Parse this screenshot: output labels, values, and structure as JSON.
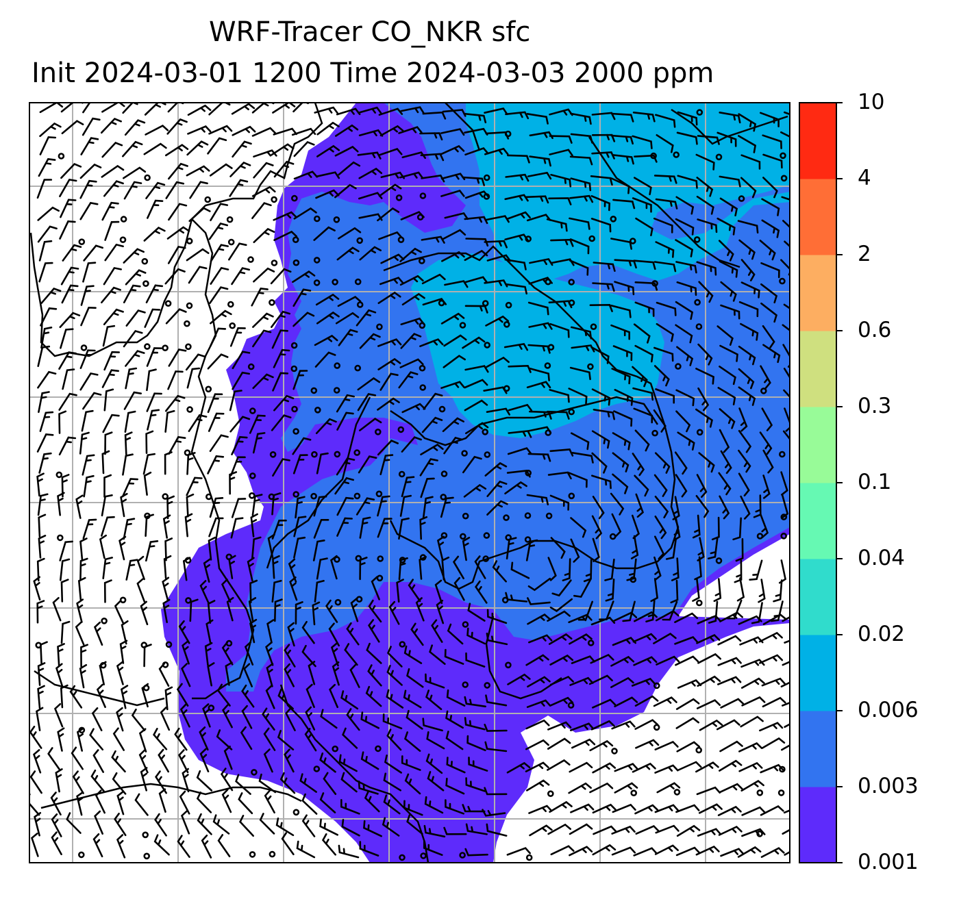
{
  "figure": {
    "title_line1": "WRF-Tracer CO_NKR sfc",
    "title_line2": "Init 2024-03-01 1200 Time 2024-03-03 2000 ppm"
  },
  "colorbar": {
    "levels": [
      "0.001",
      "0.003",
      "0.006",
      "0.02",
      "0.04",
      "0.1",
      "0.3",
      "0.6",
      "2",
      "4",
      "10"
    ],
    "colors": [
      "#5e2bfb",
      "#3274f0",
      "#00b1e6",
      "#30dccc",
      "#66f9b3",
      "#98fb98",
      "#cfe07f",
      "#fdae61",
      "#ff6e36",
      "#ff2a12"
    ]
  },
  "map": {
    "background": "#ffffff",
    "gridline_color": "#b0b0b0",
    "coastline_color": "#000000",
    "wind_barb_color": "#000000",
    "shaded_classes_present": [
      "0.001",
      "0.003",
      "0.006"
    ]
  }
}
